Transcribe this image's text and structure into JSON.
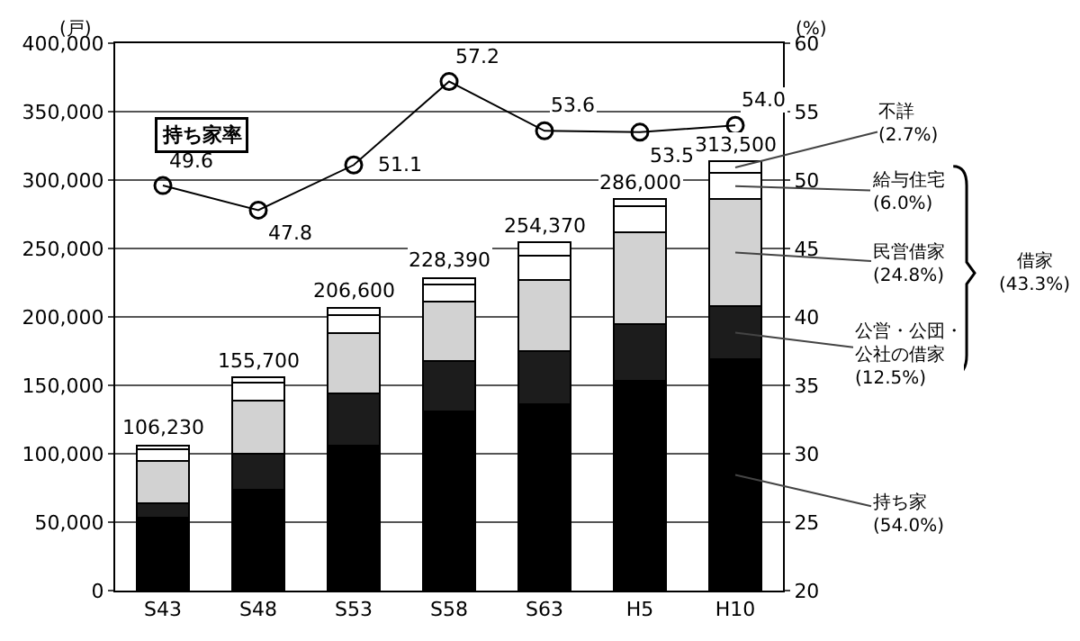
{
  "chart_data": {
    "type": "bar",
    "stacked": true,
    "ylabel": "(戸)",
    "y2label": "(%)",
    "categories": [
      "S43",
      "S48",
      "S53",
      "S58",
      "S63",
      "H5",
      "H10"
    ],
    "series": [
      {
        "name": "持ち家\n(54.0%)",
        "color": "#000000",
        "values": [
          53000,
          74000,
          106000,
          131000,
          136000,
          153000,
          169000
        ]
      },
      {
        "name": "公営・公団・公社の借家\n(12.5%)",
        "color": "#1c1c1c",
        "values": [
          11000,
          26000,
          38000,
          37000,
          39000,
          42000,
          39000
        ]
      },
      {
        "name": "民営借家\n(24.8%)",
        "color": "#d2d2d2",
        "values": [
          31000,
          39000,
          44000,
          43000,
          52000,
          67000,
          78000
        ]
      },
      {
        "name": "給与住宅\n(6.0%)",
        "color": "#ffffff",
        "values": [
          8000,
          13000,
          13000,
          13000,
          18000,
          19000,
          19000
        ]
      },
      {
        "name": "不詳\n(2.7%)",
        "color": "#ffffff",
        "values": [
          3230,
          3700,
          5600,
          4390,
          9370,
          5000,
          8500
        ]
      },
      {
        "name": "持ち家率",
        "type": "line",
        "axis": "y2",
        "color": "#000000",
        "marker": "circle",
        "values": [
          49.6,
          47.8,
          51.1,
          57.2,
          53.6,
          53.5,
          54.0
        ],
        "value_labels": [
          "49.6",
          "47.8",
          "51.1",
          "57.2",
          "53.6",
          "53.5",
          "54.0"
        ]
      }
    ],
    "totals": [
      "106,230",
      "155,700",
      "206,600",
      "228,390",
      "254,370",
      "286,000",
      "313,500"
    ],
    "annotations": [
      "借家\n(43.3%)"
    ],
    "ylim": [
      0,
      400000
    ],
    "yticks": [
      {
        "value": 0,
        "label": "0"
      },
      {
        "value": 50000,
        "label": "50,000"
      },
      {
        "value": 100000,
        "label": "100,000"
      },
      {
        "value": 150000,
        "label": "150,000"
      },
      {
        "value": 200000,
        "label": "200,000"
      },
      {
        "value": 250000,
        "label": "250,000"
      },
      {
        "value": 300000,
        "label": "300,000"
      },
      {
        "value": 350000,
        "label": "350,000"
      },
      {
        "value": 400000,
        "label": "400,000"
      }
    ],
    "y2lim": [
      20,
      60
    ],
    "y2ticks": [
      20,
      25,
      30,
      35,
      40,
      45,
      50,
      55,
      60
    ],
    "grid": "y",
    "legend": false
  }
}
